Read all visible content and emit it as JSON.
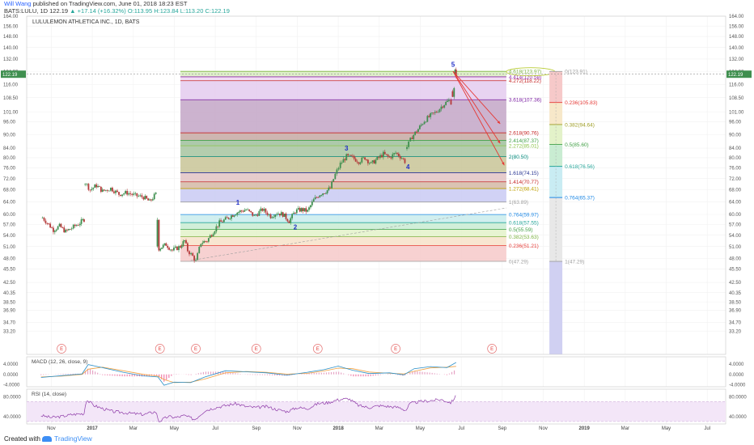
{
  "header": {
    "author": "Will Wang",
    "published": "published on TradingView.com, June 01, 2018 18:23 EST",
    "symbol_line": "BATS:LULU, 1D 122.19",
    "change": "▲ +17.14 (+16.32%)",
    "ohlc": "O:113.95 H:123.84 L:113.20 C:122.19"
  },
  "footer": {
    "created": "Created with",
    "brand": "TradingView"
  },
  "chart_data": {
    "type": "candlestick",
    "title": "LULULEMON ATHLETICA INC., 1D, BATS",
    "last_price": 122.19,
    "ylim": [
      29.5,
      164
    ],
    "y_scale": "log",
    "y_ticks": [
      33.2,
      34.7,
      36.9,
      38.5,
      40.35,
      42.5,
      45.5,
      48.0,
      51.0,
      54.0,
      57.0,
      60.0,
      64.0,
      68.0,
      72.0,
      76.0,
      80.0,
      84.0,
      90.0,
      96.0,
      101.0,
      108.5,
      116.0,
      124.0,
      132.0,
      140.0,
      148.0,
      156.0,
      164.0
    ],
    "x_ticks": [
      {
        "label": "Nov",
        "x": 0.5
      },
      {
        "label": "2017",
        "x": 2.5,
        "bold": true
      },
      {
        "label": "Mar",
        "x": 4.5
      },
      {
        "label": "May",
        "x": 6.5
      },
      {
        "label": "Jul",
        "x": 8.5
      },
      {
        "label": "Sep",
        "x": 10.5
      },
      {
        "label": "Nov",
        "x": 12.5
      },
      {
        "label": "2018",
        "x": 14.5,
        "bold": true
      },
      {
        "label": "Mar",
        "x": 16.5
      },
      {
        "label": "May",
        "x": 18.5
      },
      {
        "label": "Jul",
        "x": 20.5
      },
      {
        "label": "Sep",
        "x": 22.5
      },
      {
        "label": "Nov",
        "x": 24.5
      },
      {
        "label": "2019",
        "x": 26.5,
        "bold": true
      },
      {
        "label": "Mar",
        "x": 28.5
      },
      {
        "label": "May",
        "x": 30.5
      },
      {
        "label": "Jul",
        "x": 32.5
      }
    ],
    "price_path": [
      [
        0.0,
        59.5
      ],
      [
        0.3,
        57.5
      ],
      [
        0.6,
        55.5
      ],
      [
        0.9,
        56.5
      ],
      [
        1.2,
        55.0
      ],
      [
        1.5,
        56.0
      ],
      [
        1.9,
        57.5
      ],
      [
        2.1,
        58.5
      ],
      [
        2.15,
        70.5
      ],
      [
        2.4,
        68.0
      ],
      [
        2.7,
        69.5
      ],
      [
        3.0,
        67.5
      ],
      [
        3.4,
        68.5
      ],
      [
        3.8,
        66.5
      ],
      [
        4.2,
        67.0
      ],
      [
        4.6,
        66.0
      ],
      [
        5.0,
        65.5
      ],
      [
        5.3,
        64.0
      ],
      [
        5.6,
        66.5
      ],
      [
        5.75,
        50.5
      ],
      [
        6.1,
        51.5
      ],
      [
        6.4,
        50.0
      ],
      [
        6.8,
        51.0
      ],
      [
        7.0,
        52.5
      ],
      [
        7.15,
        50.0
      ],
      [
        7.4,
        48.5
      ],
      [
        7.55,
        47.3
      ],
      [
        7.8,
        52.0
      ],
      [
        8.1,
        52.5
      ],
      [
        8.4,
        55.0
      ],
      [
        8.7,
        57.5
      ],
      [
        9.0,
        58.5
      ],
      [
        9.5,
        60.5
      ],
      [
        10.0,
        61.5
      ],
      [
        10.4,
        59.5
      ],
      [
        10.8,
        61.5
      ],
      [
        11.2,
        59.5
      ],
      [
        11.5,
        60.5
      ],
      [
        11.8,
        60.0
      ],
      [
        12.1,
        58.0
      ],
      [
        12.4,
        61.0
      ],
      [
        12.7,
        61.5
      ],
      [
        13.0,
        61.0
      ],
      [
        13.3,
        64.5
      ],
      [
        13.6,
        66.5
      ],
      [
        13.9,
        67.5
      ],
      [
        14.1,
        68.5
      ],
      [
        14.35,
        73.5
      ],
      [
        14.6,
        77.5
      ],
      [
        14.9,
        80.5
      ],
      [
        15.2,
        80.0
      ],
      [
        15.5,
        78.5
      ],
      [
        15.8,
        80.0
      ],
      [
        16.1,
        77.5
      ],
      [
        16.4,
        79.5
      ],
      [
        16.7,
        81.5
      ],
      [
        17.0,
        80.0
      ],
      [
        17.3,
        82.0
      ],
      [
        17.6,
        80.0
      ],
      [
        17.75,
        78.5
      ],
      [
        17.85,
        84.5
      ],
      [
        18.1,
        89.0
      ],
      [
        18.4,
        92.5
      ],
      [
        18.7,
        96.5
      ],
      [
        19.0,
        99.0
      ],
      [
        19.3,
        101.0
      ],
      [
        19.6,
        104.5
      ],
      [
        19.9,
        107.0
      ],
      [
        20.0,
        106.0
      ],
      [
        20.15,
        113.2
      ],
      [
        20.2,
        123.84
      ],
      [
        20.25,
        122.19
      ]
    ],
    "wave_labels": [
      {
        "label": "1",
        "x": 9.6,
        "y": 63.0,
        "color": "#1f2ec7"
      },
      {
        "label": "2",
        "x": 12.4,
        "y": 55.6,
        "color": "#1f2ec7"
      },
      {
        "label": "3",
        "x": 14.9,
        "y": 83.0,
        "color": "#1f2ec7"
      },
      {
        "label": "4",
        "x": 17.9,
        "y": 75.5,
        "color": "#1f2ec7"
      },
      {
        "label": "5",
        "x": 20.1,
        "y": 127.0,
        "color": "#1f2ec7"
      }
    ],
    "projections": [
      {
        "from": [
          20.1,
          124.0
        ],
        "to": [
          22.4,
          95.0
        ]
      },
      {
        "from": [
          20.1,
          124.0
        ],
        "to": [
          22.4,
          86.0
        ]
      },
      {
        "from": [
          20.1,
          124.0
        ],
        "to": [
          22.6,
          77.0
        ]
      }
    ],
    "trendline": {
      "from": [
        7.3,
        47.5
      ],
      "to": [
        22.7,
        62.0
      ]
    },
    "fib_extension": {
      "x_range": [
        6.8,
        22.7
      ],
      "levels": [
        {
          "ratio": "0",
          "value": 47.29,
          "text": "0(47.29)",
          "color": "#9e9e9e"
        },
        {
          "ratio": "0.236",
          "value": 51.21,
          "text": "0.236(51.21)",
          "color": "#e53935"
        },
        {
          "ratio": "0.382",
          "value": 53.63,
          "text": "0.382(53.63)",
          "color": "#7cb342"
        },
        {
          "ratio": "0.5",
          "value": 55.59,
          "text": "0.5(55.59)",
          "color": "#43a047"
        },
        {
          "ratio": "0.618",
          "value": 57.55,
          "text": "0.618(57.55)",
          "color": "#26a69a"
        },
        {
          "ratio": "0.764",
          "value": 59.97,
          "text": "0.764(59.97)",
          "color": "#1e88e5"
        },
        {
          "ratio": "1",
          "value": 63.89,
          "text": "1(63.89)",
          "color": "#9e9e9e"
        },
        {
          "ratio": "1.272",
          "value": 68.41,
          "text": "1.272(68.41)",
          "color": "#c0a000"
        },
        {
          "ratio": "1.414",
          "value": 70.77,
          "text": "1.414(70.77)",
          "color": "#c62828"
        },
        {
          "ratio": "1.618",
          "value": 74.15,
          "text": "1.618(74.15)",
          "color": "#283593"
        },
        {
          "ratio": "2",
          "value": 80.5,
          "text": "2(80.50)",
          "color": "#00897b"
        },
        {
          "ratio": "2.272",
          "value": 85.01,
          "text": "2.272(85.01)",
          "color": "#8bc34a"
        },
        {
          "ratio": "2.414",
          "value": 87.37,
          "text": "2.414(87.37)",
          "color": "#43a047"
        },
        {
          "ratio": "2.618",
          "value": 90.76,
          "text": "2.618(90.76)",
          "color": "#c62828"
        },
        {
          "ratio": "3.618",
          "value": 107.36,
          "text": "3.618(107.36)",
          "color": "#7b1fa2"
        },
        {
          "ratio": "4.272",
          "value": 118.22,
          "text": "4.272(118.22)",
          "color": "#c62828"
        },
        {
          "ratio": "4.414",
          "value": 120.58,
          "text": "4.414(120.58)",
          "color": "#8e24aa"
        },
        {
          "ratio": "4.618",
          "value": 123.97,
          "text": "4.618(123.97)",
          "color": "#7cb342"
        }
      ],
      "fills": [
        {
          "from": 47.29,
          "to": 51.21,
          "color": "#f6c9c9"
        },
        {
          "from": 51.21,
          "to": 53.63,
          "color": "#f7e2c9"
        },
        {
          "from": 53.63,
          "to": 55.59,
          "color": "#e3f2c9"
        },
        {
          "from": 55.59,
          "to": 57.55,
          "color": "#c9ecd2"
        },
        {
          "from": 57.55,
          "to": 59.97,
          "color": "#c9ecec"
        },
        {
          "from": 59.97,
          "to": 63.89,
          "color": "#ffffff"
        },
        {
          "from": 63.89,
          "to": 68.41,
          "color": "#c9caf3"
        },
        {
          "from": 68.41,
          "to": 70.77,
          "color": "#d4b8a6"
        },
        {
          "from": 70.77,
          "to": 74.15,
          "color": "#e2c3c3"
        },
        {
          "from": 74.15,
          "to": 80.5,
          "color": "#c8c497"
        },
        {
          "from": 80.5,
          "to": 85.01,
          "color": "#a7c4a0"
        },
        {
          "from": 85.01,
          "to": 87.37,
          "color": "#9fbf9c"
        },
        {
          "from": 87.37,
          "to": 90.76,
          "color": "#c5a9a3"
        },
        {
          "from": 90.76,
          "to": 107.36,
          "color": "#c3a6c7"
        },
        {
          "from": 107.36,
          "to": 118.22,
          "color": "#e4cbef"
        },
        {
          "from": 118.22,
          "to": 120.58,
          "color": "#eed6f2"
        },
        {
          "from": 120.58,
          "to": 123.97,
          "color": "#d9ecc1"
        }
      ]
    },
    "fib_retracement": {
      "x": 24.8,
      "levels": [
        {
          "text": "0(123.91)",
          "value": 123.91,
          "color": "#9e9e9e"
        },
        {
          "text": "0.236(105.83)",
          "value": 105.83,
          "color": "#e53935"
        },
        {
          "text": "0.382(94.64)",
          "value": 94.64,
          "color": "#9e9d24"
        },
        {
          "text": "0.5(85.60)",
          "value": 85.6,
          "color": "#43a047"
        },
        {
          "text": "0.618(76.56)",
          "value": 76.56,
          "color": "#26a69a"
        },
        {
          "text": "0.764(65.37)",
          "value": 65.37,
          "color": "#1e88e5"
        },
        {
          "text": "1(47.29)",
          "value": 47.29,
          "color": "#9e9e9e"
        }
      ],
      "fills": [
        {
          "from": 123.91,
          "to": 105.83,
          "color": "#f6c9c9"
        },
        {
          "from": 105.83,
          "to": 94.64,
          "color": "#f7e8c9"
        },
        {
          "from": 94.64,
          "to": 85.6,
          "color": "#e3f2c9"
        },
        {
          "from": 85.6,
          "to": 76.56,
          "color": "#c9ecd2"
        },
        {
          "from": 76.56,
          "to": 65.37,
          "color": "#c9ecf3"
        },
        {
          "from": 65.37,
          "to": 47.29,
          "color": "#e8e8e8"
        },
        {
          "from": 47.29,
          "to": 29.5,
          "color": "#d0d0f2"
        }
      ]
    },
    "earnings_markers": [
      1.0,
      5.8,
      7.55,
      10.5,
      13.5,
      17.3,
      22.0
    ],
    "earnings_label": "E",
    "macd": {
      "title": "MACD (12, 26, close, 9)",
      "ylim": [
        -4.8,
        6.8
      ],
      "ticks": [
        4.0,
        0.0,
        -4.0
      ],
      "tick_labels": [
        "4.0000",
        "0.0000",
        "-4.0000"
      ],
      "macd": [
        [
          0.0,
          -1.2
        ],
        [
          1.0,
          -0.5
        ],
        [
          2.0,
          0.2
        ],
        [
          2.3,
          3.8
        ],
        [
          3.0,
          2.6
        ],
        [
          4.0,
          0.8
        ],
        [
          5.0,
          -0.6
        ],
        [
          5.7,
          -1.0
        ],
        [
          6.0,
          -4.2
        ],
        [
          6.5,
          -3.0
        ],
        [
          7.3,
          -3.2
        ],
        [
          8.0,
          -1.0
        ],
        [
          9.0,
          1.4
        ],
        [
          10.0,
          1.0
        ],
        [
          11.0,
          0.6
        ],
        [
          12.0,
          -0.3
        ],
        [
          13.0,
          0.8
        ],
        [
          13.8,
          1.8
        ],
        [
          14.5,
          3.2
        ],
        [
          15.2,
          1.6
        ],
        [
          16.0,
          0.3
        ],
        [
          17.0,
          0.6
        ],
        [
          17.7,
          -0.2
        ],
        [
          18.2,
          2.2
        ],
        [
          19.0,
          3.0
        ],
        [
          19.8,
          2.6
        ],
        [
          20.25,
          4.6
        ]
      ],
      "signal": [
        [
          0.0,
          -1.0
        ],
        [
          1.0,
          -0.7
        ],
        [
          2.0,
          0.0
        ],
        [
          2.3,
          2.0
        ],
        [
          3.0,
          2.8
        ],
        [
          4.0,
          1.4
        ],
        [
          5.0,
          0.0
        ],
        [
          5.7,
          -0.7
        ],
        [
          6.0,
          -2.0
        ],
        [
          6.5,
          -3.2
        ],
        [
          7.3,
          -3.0
        ],
        [
          8.0,
          -1.8
        ],
        [
          9.0,
          0.6
        ],
        [
          10.0,
          1.1
        ],
        [
          11.0,
          0.8
        ],
        [
          12.0,
          0.1
        ],
        [
          13.0,
          0.4
        ],
        [
          13.8,
          1.3
        ],
        [
          14.5,
          2.4
        ],
        [
          15.2,
          2.2
        ],
        [
          16.0,
          0.9
        ],
        [
          17.0,
          0.4
        ],
        [
          17.7,
          0.2
        ],
        [
          18.2,
          1.2
        ],
        [
          19.0,
          2.5
        ],
        [
          19.8,
          2.8
        ],
        [
          20.25,
          3.1
        ]
      ]
    },
    "rsi": {
      "title": "RSI (14, close)",
      "ylim": [
        25,
        95
      ],
      "band": [
        30,
        70
      ],
      "ticks": [
        80,
        40
      ],
      "tick_labels": [
        "80.0000",
        "40.0000"
      ],
      "values": [
        [
          0.0,
          42
        ],
        [
          0.5,
          38
        ],
        [
          1.0,
          40
        ],
        [
          1.5,
          44
        ],
        [
          2.1,
          46
        ],
        [
          2.2,
          74
        ],
        [
          2.6,
          62
        ],
        [
          3.0,
          56
        ],
        [
          3.5,
          50
        ],
        [
          4.0,
          48
        ],
        [
          4.5,
          46
        ],
        [
          5.0,
          44
        ],
        [
          5.6,
          50
        ],
        [
          5.75,
          30
        ],
        [
          6.2,
          40
        ],
        [
          6.6,
          38
        ],
        [
          7.0,
          42
        ],
        [
          7.5,
          34
        ],
        [
          8.0,
          52
        ],
        [
          8.5,
          58
        ],
        [
          9.0,
          62
        ],
        [
          9.5,
          66
        ],
        [
          10.0,
          60
        ],
        [
          10.5,
          58
        ],
        [
          11.0,
          60
        ],
        [
          11.5,
          54
        ],
        [
          12.0,
          50
        ],
        [
          12.5,
          58
        ],
        [
          13.0,
          56
        ],
        [
          13.5,
          66
        ],
        [
          14.0,
          68
        ],
        [
          14.5,
          74
        ],
        [
          15.0,
          76
        ],
        [
          15.5,
          62
        ],
        [
          16.0,
          58
        ],
        [
          16.5,
          62
        ],
        [
          17.0,
          60
        ],
        [
          17.5,
          58
        ],
        [
          17.8,
          52
        ],
        [
          18.0,
          66
        ],
        [
          18.5,
          70
        ],
        [
          19.0,
          72
        ],
        [
          19.5,
          74
        ],
        [
          20.0,
          68
        ],
        [
          20.25,
          82
        ]
      ]
    }
  }
}
